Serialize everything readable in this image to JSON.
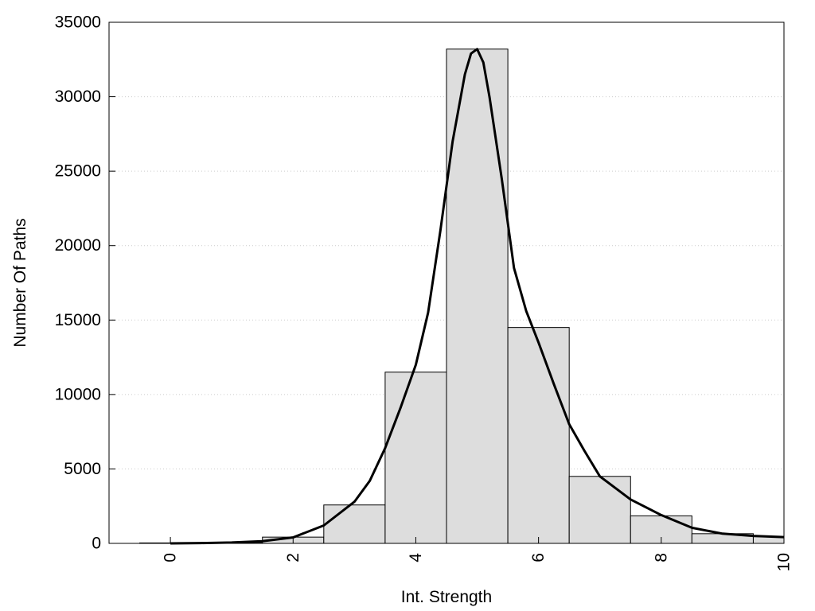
{
  "chart_data": {
    "type": "bar",
    "title": "",
    "xlabel": "Int. Strength",
    "ylabel": "Number Of Paths",
    "xlim": [
      -1,
      10
    ],
    "ylim": [
      0,
      35000
    ],
    "x_ticks": [
      "0",
      "2",
      "4",
      "6",
      "8",
      "10"
    ],
    "y_ticks": [
      "0",
      "5000",
      "10000",
      "15000",
      "20000",
      "25000",
      "30000",
      "35000"
    ],
    "grid": "horizontal dotted",
    "legend": "none",
    "colors": {
      "bar_fill": "#dddddd",
      "bar_stroke": "#000000",
      "curve": "#000000",
      "grid": "#cccccc"
    },
    "bars": [
      {
        "x": 0,
        "value": 30
      },
      {
        "x": 1,
        "value": 60
      },
      {
        "x": 2,
        "value": 420
      },
      {
        "x": 3,
        "value": 2580
      },
      {
        "x": 4,
        "value": 11500
      },
      {
        "x": 5,
        "value": 33200
      },
      {
        "x": 6,
        "value": 14500
      },
      {
        "x": 7,
        "value": 4500
      },
      {
        "x": 8,
        "value": 1850
      },
      {
        "x": 9,
        "value": 650
      },
      {
        "x": 10,
        "value": 450
      }
    ],
    "curve": {
      "x": [
        0,
        0.5,
        1,
        1.5,
        2,
        2.5,
        3,
        3.25,
        3.5,
        3.75,
        4,
        4.2,
        4.4,
        4.6,
        4.8,
        4.9,
        5,
        5.1,
        5.2,
        5.4,
        5.6,
        5.8,
        6,
        6.25,
        6.5,
        6.75,
        7,
        7.5,
        8,
        8.5,
        9,
        9.5,
        10
      ],
      "y": [
        0,
        20,
        60,
        150,
        400,
        1200,
        2800,
        4200,
        6400,
        9100,
        12000,
        15500,
        21000,
        27000,
        31500,
        32900,
        33200,
        32300,
        30000,
        24500,
        18500,
        15600,
        13500,
        10700,
        8000,
        6200,
        4500,
        2950,
        1900,
        1050,
        650,
        500,
        420
      ]
    }
  }
}
